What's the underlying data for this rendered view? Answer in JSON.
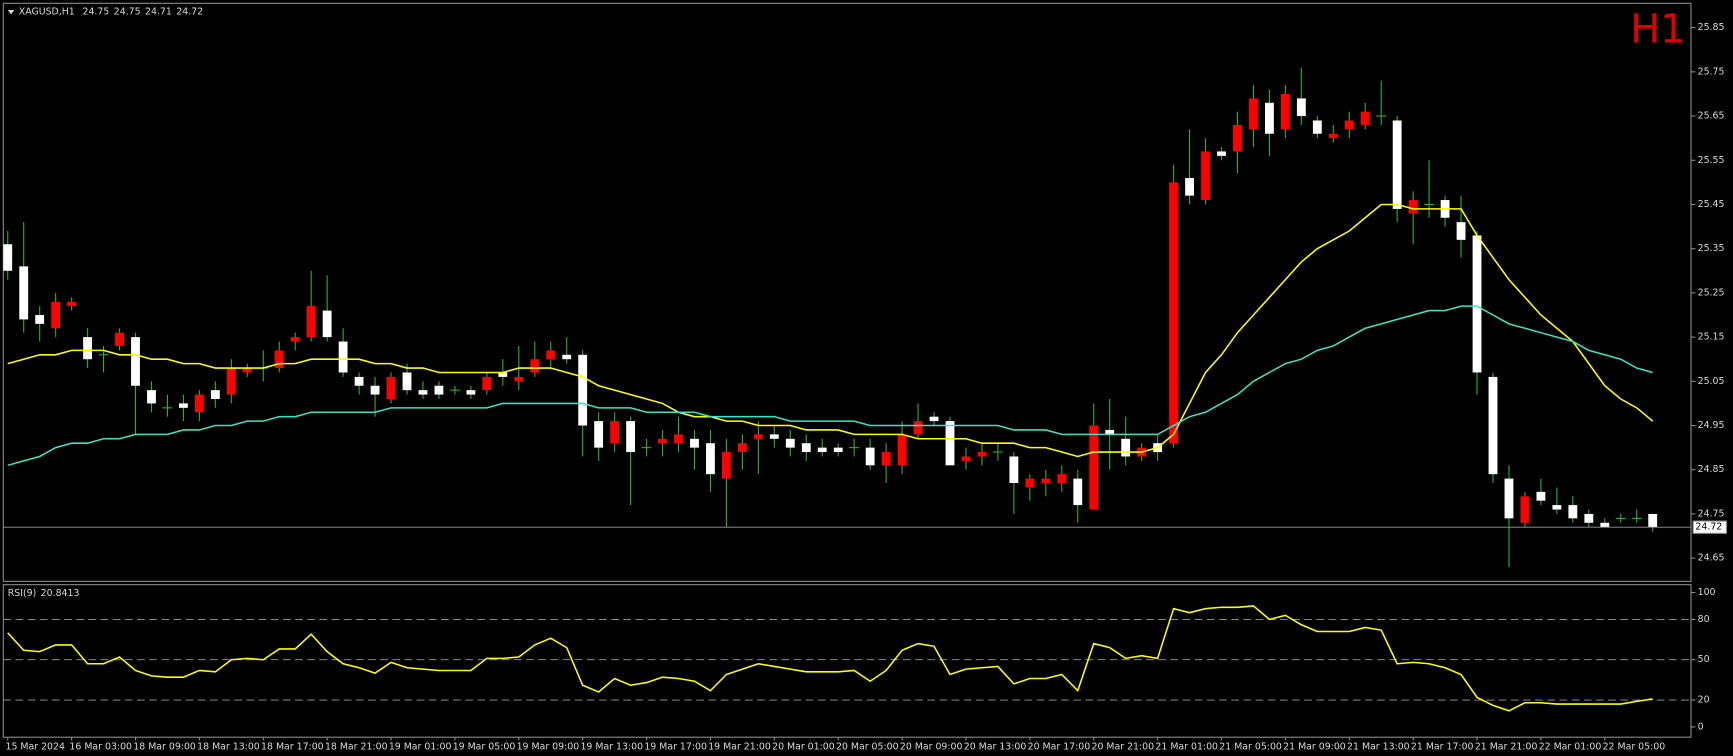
{
  "chart_data": [
    {
      "type": "candlestick",
      "title": "XAGUSD,H1",
      "timeframe": "H1",
      "categories": [
        "15 Mar 2024",
        null,
        null,
        null,
        "16 Mar 03:00",
        null,
        null,
        null,
        "18 Mar 09:00",
        null,
        null,
        null,
        "18 Mar 13:00",
        null,
        null,
        null,
        "18 Mar 17:00",
        null,
        null,
        null,
        "18 Mar 21:00",
        null,
        null,
        null,
        "19 Mar 01:00",
        null,
        null,
        null,
        "19 Mar 05:00",
        null,
        null,
        null,
        "19 Mar 09:00",
        null,
        null,
        null,
        "19 Mar 13:00",
        null,
        null,
        null,
        "19 Mar 17:00",
        null,
        null,
        null,
        "19 Mar 21:00",
        null,
        null,
        null,
        "20 Mar 01:00",
        null,
        null,
        null,
        "20 Mar 05:00",
        null,
        null,
        null,
        "20 Mar 09:00",
        null,
        null,
        null,
        "20 Mar 13:00",
        null,
        null,
        null,
        "20 Mar 17:00",
        null,
        null,
        null,
        "20 Mar 21:00",
        null,
        null,
        null,
        "21 Mar 01:00",
        null,
        null,
        null,
        "21 Mar 05:00",
        null,
        null,
        null,
        "21 Mar 09:00",
        null,
        null,
        null,
        "21 Mar 13:00",
        null,
        null,
        null,
        "21 Mar 17:00",
        null,
        null,
        null,
        "21 Mar 21:00",
        null,
        null,
        null,
        "22 Mar 01:00",
        null,
        null,
        null,
        "22 Mar 05:00",
        null,
        null,
        null
      ],
      "open": [
        25.36,
        25.31,
        25.2,
        25.17,
        25.22,
        25.15,
        25.11,
        25.13,
        25.15,
        25.03,
        24.99,
        25.0,
        24.98,
        25.03,
        25.02,
        25.07,
        25.08,
        25.08,
        25.14,
        25.15,
        25.21,
        25.14,
        25.06,
        25.04,
        25.01,
        25.07,
        25.03,
        25.04,
        25.03,
        25.03,
        25.03,
        25.07,
        25.05,
        25.07,
        25.1,
        25.11,
        25.11,
        24.96,
        24.91,
        24.96,
        24.9,
        24.91,
        24.91,
        24.92,
        24.91,
        24.83,
        24.89,
        24.92,
        24.93,
        24.92,
        24.91,
        24.9,
        24.9,
        24.9,
        24.9,
        24.86,
        24.86,
        24.93,
        24.97,
        24.96,
        24.87,
        24.88,
        24.89,
        24.88,
        24.81,
        24.82,
        24.82,
        24.83,
        24.76,
        24.94,
        24.92,
        24.88,
        24.91,
        24.91,
        25.51,
        25.46,
        25.57,
        25.57,
        25.62,
        25.68,
        25.62,
        25.69,
        25.64,
        25.6,
        25.62,
        25.63,
        25.65,
        25.64,
        25.43,
        25.45,
        25.46,
        25.41,
        25.38,
        25.06,
        24.83,
        24.73,
        24.8,
        24.77,
        24.77,
        24.75,
        24.73,
        24.74,
        24.74,
        24.75
      ],
      "high": [
        25.39,
        25.41,
        25.22,
        25.25,
        25.24,
        25.17,
        25.13,
        25.17,
        25.16,
        25.05,
        25.02,
        25.02,
        25.03,
        25.05,
        25.1,
        25.09,
        25.12,
        25.14,
        25.16,
        25.3,
        25.29,
        25.17,
        25.07,
        25.06,
        25.07,
        25.09,
        25.05,
        25.05,
        25.04,
        25.04,
        25.07,
        25.1,
        25.13,
        25.14,
        25.14,
        25.15,
        25.12,
        24.98,
        24.98,
        24.97,
        24.92,
        24.94,
        24.97,
        24.94,
        24.94,
        24.92,
        24.93,
        24.96,
        24.95,
        24.94,
        24.93,
        24.92,
        24.91,
        24.92,
        24.92,
        24.91,
        24.96,
        25.0,
        24.98,
        24.97,
        24.9,
        24.91,
        24.91,
        24.89,
        24.84,
        24.85,
        24.86,
        24.85,
        25.0,
        25.01,
        24.97,
        24.91,
        24.93,
        25.54,
        25.62,
        25.6,
        25.58,
        25.66,
        25.72,
        25.71,
        25.72,
        25.76,
        25.65,
        25.63,
        25.66,
        25.68,
        25.73,
        25.65,
        25.48,
        25.55,
        25.47,
        25.47,
        25.39,
        25.07,
        24.86,
        24.8,
        24.83,
        24.81,
        24.79,
        24.76,
        24.74,
        24.75,
        24.76,
        24.75
      ],
      "low": [
        25.28,
        25.16,
        25.14,
        25.15,
        25.21,
        25.08,
        25.07,
        25.12,
        24.93,
        24.98,
        24.97,
        24.96,
        24.96,
        24.99,
        25.0,
        25.06,
        25.05,
        25.07,
        25.12,
        25.14,
        25.14,
        25.06,
        25.02,
        24.97,
        25.0,
        25.02,
        25.01,
        25.01,
        25.02,
        25.01,
        25.02,
        25.04,
        25.03,
        25.06,
        25.08,
        25.09,
        24.88,
        24.87,
        24.89,
        24.77,
        24.88,
        24.88,
        24.89,
        24.85,
        24.8,
        24.72,
        24.85,
        24.84,
        24.9,
        24.88,
        24.87,
        24.88,
        24.88,
        24.88,
        24.85,
        24.82,
        24.84,
        24.92,
        24.95,
        24.86,
        24.85,
        24.86,
        24.87,
        24.75,
        24.78,
        24.79,
        24.8,
        24.73,
        24.76,
        24.85,
        24.86,
        24.87,
        24.87,
        24.9,
        25.45,
        25.45,
        25.55,
        25.52,
        25.58,
        25.56,
        25.6,
        25.63,
        25.6,
        25.59,
        25.6,
        25.62,
        25.63,
        25.41,
        25.36,
        25.42,
        25.4,
        25.33,
        25.02,
        24.82,
        24.63,
        24.72,
        24.77,
        24.75,
        24.73,
        24.72,
        24.72,
        24.73,
        24.73,
        24.71
      ],
      "close": [
        25.3,
        25.19,
        25.18,
        25.23,
        25.23,
        25.1,
        25.11,
        25.16,
        25.04,
        25.0,
        24.99,
        24.99,
        25.02,
        25.01,
        25.08,
        25.08,
        25.08,
        25.12,
        25.15,
        25.22,
        25.15,
        25.07,
        25.04,
        25.02,
        25.06,
        25.03,
        25.02,
        25.02,
        25.03,
        25.02,
        25.06,
        25.06,
        25.06,
        25.1,
        25.12,
        25.1,
        24.95,
        24.9,
        24.96,
        24.89,
        24.9,
        24.92,
        24.93,
        24.9,
        24.84,
        24.89,
        24.91,
        24.93,
        24.92,
        24.9,
        24.89,
        24.89,
        24.89,
        24.9,
        24.86,
        24.89,
        24.93,
        24.96,
        24.96,
        24.86,
        24.88,
        24.89,
        24.89,
        24.82,
        24.83,
        24.83,
        24.84,
        24.77,
        24.95,
        24.93,
        24.88,
        24.9,
        24.89,
        25.5,
        25.47,
        25.57,
        25.56,
        25.63,
        25.69,
        25.61,
        25.7,
        25.65,
        25.61,
        25.61,
        25.64,
        25.66,
        25.65,
        25.44,
        25.46,
        25.45,
        25.42,
        25.37,
        25.07,
        24.84,
        24.74,
        24.79,
        24.78,
        24.76,
        24.74,
        24.73,
        24.72,
        24.74,
        24.74,
        24.72
      ],
      "up_color": "#ff0000",
      "down_color": "#ffffff",
      "wick_color": "#2fae2f",
      "lines": [
        {
          "color": "#ffff00",
          "values": [
            25.09,
            25.1,
            25.11,
            25.11,
            25.12,
            25.12,
            25.12,
            25.11,
            25.11,
            25.1,
            25.1,
            25.09,
            25.09,
            25.08,
            25.08,
            25.08,
            25.08,
            25.09,
            25.09,
            25.1,
            25.1,
            25.1,
            25.1,
            25.09,
            25.09,
            25.08,
            25.08,
            25.07,
            25.07,
            25.07,
            25.07,
            25.07,
            25.08,
            25.08,
            25.08,
            25.07,
            25.06,
            25.04,
            25.03,
            25.02,
            25.01,
            25.0,
            24.98,
            24.97,
            24.97,
            24.96,
            24.96,
            24.95,
            24.95,
            24.95,
            24.94,
            24.94,
            24.94,
            24.93,
            24.93,
            24.93,
            24.93,
            24.92,
            24.92,
            24.92,
            24.92,
            24.91,
            24.91,
            24.91,
            24.9,
            24.9,
            24.89,
            24.88,
            24.89,
            24.89,
            24.89,
            24.89,
            24.9,
            24.93,
            25.0,
            25.07,
            25.11,
            25.16,
            25.2,
            25.24,
            25.28,
            25.32,
            25.35,
            25.37,
            25.39,
            25.42,
            25.45,
            25.45,
            25.44,
            25.44,
            25.44,
            25.44,
            25.38,
            25.33,
            25.28,
            25.24,
            25.2,
            25.17,
            25.14,
            25.09,
            25.04,
            25.01,
            24.99,
            24.96
          ]
        },
        {
          "color": "#40e0c0",
          "values": [
            24.86,
            24.87,
            24.88,
            24.9,
            24.91,
            24.91,
            24.92,
            24.92,
            24.93,
            24.93,
            24.93,
            24.94,
            24.94,
            24.95,
            24.95,
            24.96,
            24.96,
            24.97,
            24.97,
            24.98,
            24.98,
            24.98,
            24.98,
            24.98,
            24.99,
            24.99,
            24.99,
            24.99,
            24.99,
            24.99,
            24.99,
            25.0,
            25.0,
            25.0,
            25.0,
            25.0,
            25.0,
            24.99,
            24.99,
            24.99,
            24.98,
            24.98,
            24.98,
            24.98,
            24.97,
            24.97,
            24.97,
            24.97,
            24.97,
            24.96,
            24.96,
            24.96,
            24.96,
            24.96,
            24.95,
            24.95,
            24.95,
            24.95,
            24.95,
            24.95,
            24.95,
            24.95,
            24.95,
            24.94,
            24.94,
            24.94,
            24.93,
            24.93,
            24.93,
            24.93,
            24.93,
            24.93,
            24.93,
            24.95,
            24.97,
            24.98,
            25.0,
            25.02,
            25.05,
            25.07,
            25.09,
            25.1,
            25.12,
            25.13,
            25.15,
            25.17,
            25.18,
            25.19,
            25.2,
            25.21,
            25.21,
            25.22,
            25.22,
            25.2,
            25.18,
            25.17,
            25.16,
            25.15,
            25.14,
            25.12,
            25.11,
            25.1,
            25.08,
            25.07
          ]
        }
      ],
      "ylim": [
        24.6,
        25.9
      ],
      "yticks": [
        24.65,
        24.75,
        24.85,
        24.95,
        25.05,
        25.15,
        25.25,
        25.35,
        25.45,
        25.55,
        25.65,
        25.75,
        25.85
      ],
      "price_line": true
    },
    {
      "type": "line",
      "title": "RSI(9)",
      "color": "#ffff00",
      "values": [
        70,
        57,
        56,
        61,
        61,
        47,
        47,
        52,
        42,
        38,
        37,
        37,
        42,
        41,
        50,
        51,
        50,
        58,
        58,
        69,
        56,
        47,
        44,
        40,
        48,
        44,
        43,
        42,
        42,
        42,
        51,
        51,
        52,
        61,
        66,
        59,
        31,
        26,
        36,
        31,
        33,
        37,
        36,
        34,
        27,
        39,
        43,
        47,
        45,
        43,
        41,
        41,
        41,
        42,
        34,
        42,
        57,
        62,
        60,
        39,
        43,
        44,
        45,
        32,
        36,
        36,
        39,
        27,
        62,
        59,
        51,
        53,
        51,
        88,
        85,
        88,
        89,
        89,
        90,
        80,
        83,
        76,
        71,
        71,
        71,
        74,
        72,
        47,
        48,
        47,
        44,
        39,
        22,
        16,
        12,
        18,
        18,
        17,
        17,
        17,
        17,
        17,
        19,
        20.8413
      ],
      "ylim": [
        -6,
        105
      ],
      "yticks": [
        0,
        20,
        50,
        80,
        100
      ],
      "levels": [
        20,
        50,
        80
      ]
    }
  ]
}
